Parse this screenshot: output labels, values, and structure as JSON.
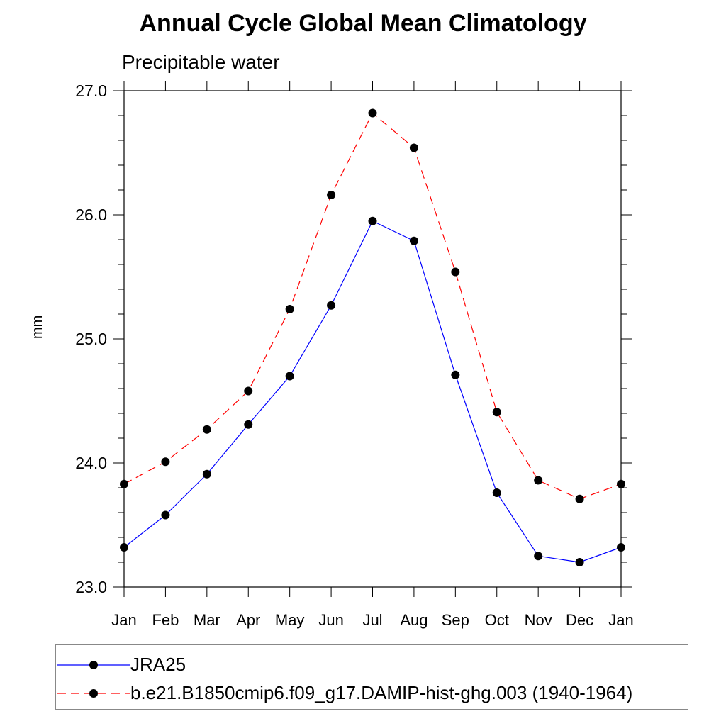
{
  "chart_data": {
    "type": "line",
    "title": "Annual Cycle Global Mean Climatology",
    "subtitle": "Precipitable water",
    "xlabel": "",
    "ylabel": "mm",
    "categories": [
      "Jan",
      "Feb",
      "Mar",
      "Apr",
      "May",
      "Jun",
      "Jul",
      "Aug",
      "Sep",
      "Oct",
      "Nov",
      "Dec",
      "Jan"
    ],
    "ylim": [
      23.0,
      27.0
    ],
    "yticks": [
      "23.0",
      "24.0",
      "25.0",
      "26.0",
      "27.0"
    ],
    "grid": false,
    "legend_position": "bottom",
    "series": [
      {
        "name": "JRA25",
        "color": "#0000ff",
        "style": "solid",
        "marker": "filled-circle",
        "values": [
          23.32,
          23.58,
          23.91,
          24.31,
          24.7,
          25.27,
          25.95,
          25.79,
          24.71,
          23.76,
          23.25,
          23.2,
          23.32
        ]
      },
      {
        "name": "b.e21.B1850cmip6.f09_g17.DAMIP-hist-ghg.003 (1940-1964)",
        "color": "#ff0000",
        "style": "dashed",
        "marker": "filled-circle",
        "values": [
          23.83,
          24.01,
          24.27,
          24.58,
          25.24,
          26.16,
          26.82,
          26.54,
          25.54,
          24.41,
          23.86,
          23.71,
          23.83
        ]
      }
    ]
  }
}
